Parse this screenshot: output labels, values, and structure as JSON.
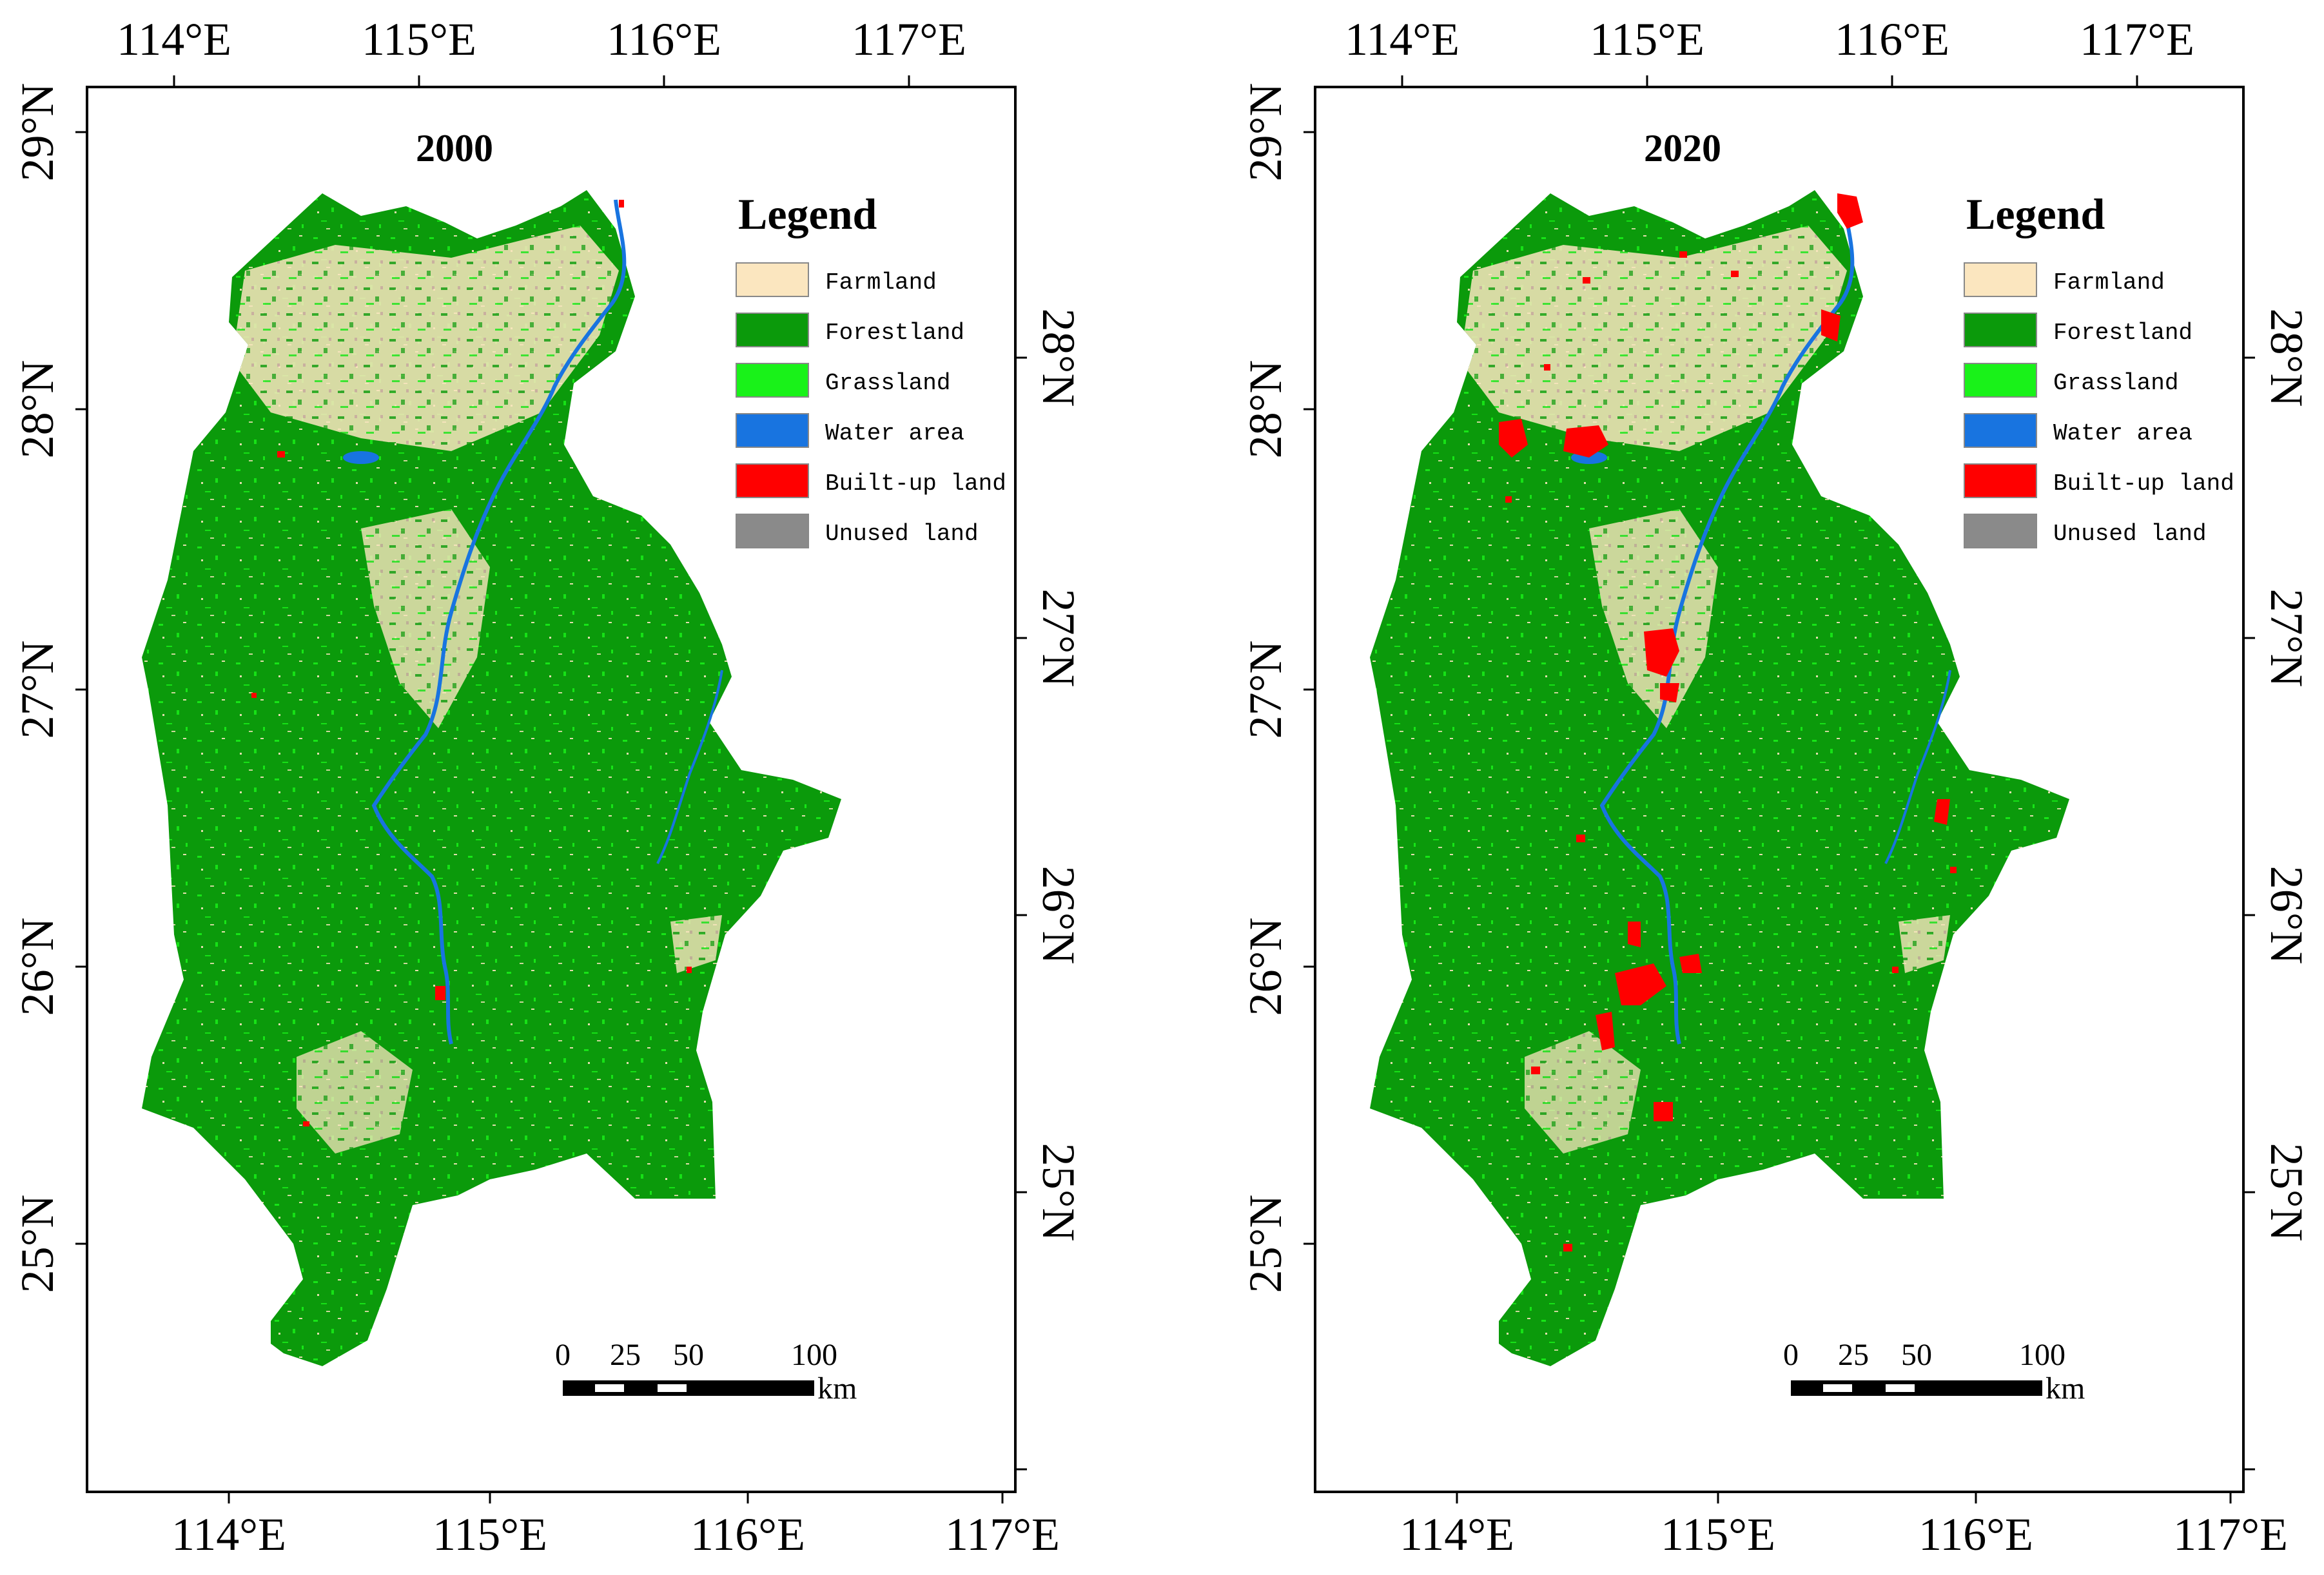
{
  "figure": {
    "panels": [
      {
        "id": "panel-2000",
        "title": "2000",
        "top_lon_labels": [
          "114°E",
          "115°E",
          "116°E",
          "117°E"
        ],
        "bottom_lon_labels": [
          "114°E",
          "115°E",
          "116°E",
          "117°E"
        ],
        "left_lat_labels": [
          "29°N",
          "28°N",
          "27°N",
          "26°N",
          "25°N"
        ],
        "right_lat_labels": [
          "28°N",
          "27°N",
          "26°N",
          "25°N"
        ]
      },
      {
        "id": "panel-2020",
        "title": "2020",
        "top_lon_labels": [
          "114°E",
          "115°E",
          "116°E",
          "117°E"
        ],
        "bottom_lon_labels": [
          "114°E",
          "115°E",
          "116°E",
          "117°E"
        ],
        "left_lat_labels": [
          "29°N",
          "28°N",
          "27°N",
          "26°N",
          "25°N"
        ],
        "right_lat_labels": [
          "28°N",
          "27°N",
          "26°N",
          "25°N"
        ]
      }
    ],
    "legend": {
      "title": "Legend",
      "items": [
        {
          "label": "Farmland",
          "color": "#fbe6bf"
        },
        {
          "label": "Forestland",
          "color": "#0b9a0b"
        },
        {
          "label": "Grassland",
          "color": "#19f219"
        },
        {
          "label": "Water area",
          "color": "#1874e0"
        },
        {
          "label": "Built-up land",
          "color": "#ff0000"
        },
        {
          "label": "Unused land",
          "color": "#8a8a8a"
        }
      ]
    },
    "scale_bar": {
      "ticks": [
        "0",
        "25",
        "50",
        "100"
      ],
      "unit": "km"
    }
  }
}
